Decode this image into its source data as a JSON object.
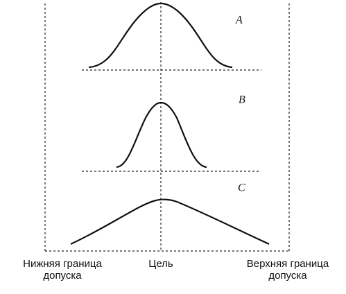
{
  "curves": [
    {
      "label": "A"
    },
    {
      "label": "B"
    },
    {
      "label": "C"
    }
  ],
  "axis_labels": {
    "lower": [
      "Нижняя граница",
      "допуска"
    ],
    "target": "Цель",
    "upper": [
      "Верхняя граница",
      "допуска"
    ]
  }
}
